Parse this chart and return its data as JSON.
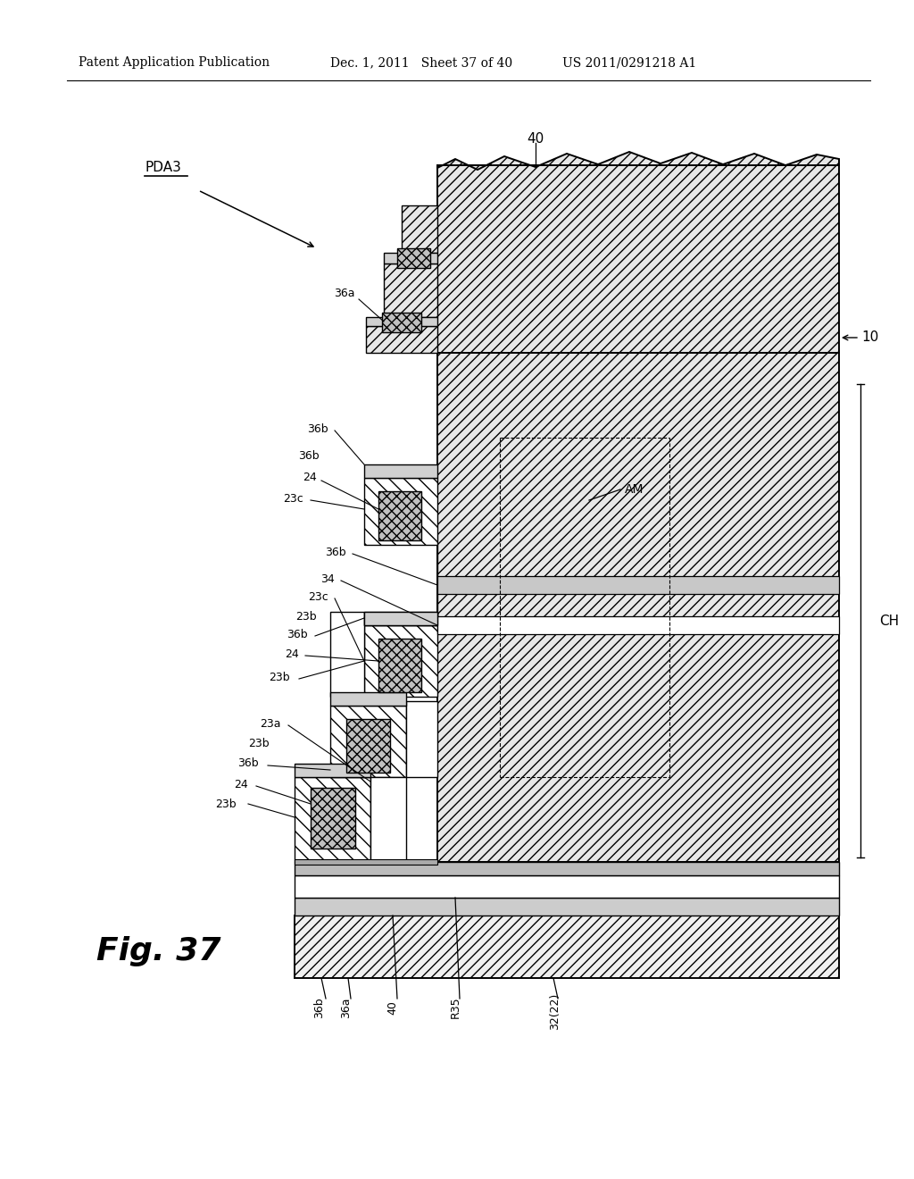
{
  "header_left": "Patent Application Publication",
  "header_mid": "Dec. 1, 2011   Sheet 37 of 40",
  "header_right": "US 2011/0291218 A1",
  "fig_label": "Fig. 37",
  "pda_label": "PDA3",
  "background_color": "#ffffff",
  "line_color": "#000000",
  "fc_main": "#e8e8e8",
  "fc_base": "#f0f0f0",
  "fc_semi": "#ffffff",
  "fc_con": "#c0c0c0",
  "fc_metal": "#d0d0d0",
  "hatch_main": "///",
  "hatch_base": "///",
  "hatch_semi": "\\\\",
  "hatch_con": "xxx"
}
